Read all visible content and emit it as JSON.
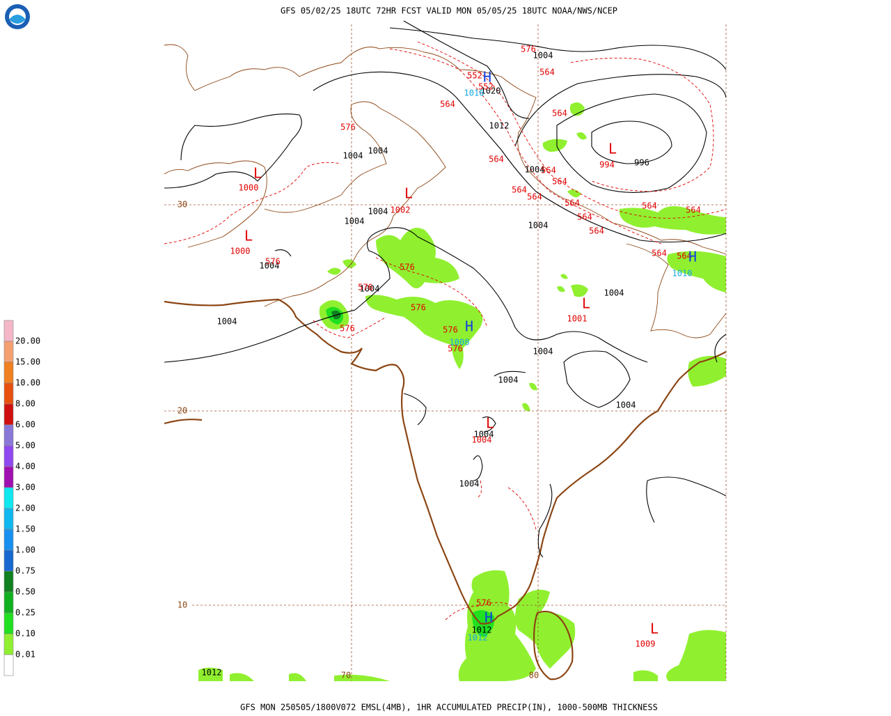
{
  "header": {
    "title": "GFS 05/02/25 18UTC 72HR FCST VALID MON 05/05/25 18UTC NOAA/NWS/NCEP"
  },
  "footer": {
    "caption": "GFS MON 250505/1800V072 EMSL(4MB), 1HR ACCUMULATED PRECIP(IN), 1000-500MB THICKNESS"
  },
  "legend": {
    "labels": [
      "20.00",
      "15.00",
      "10.00",
      "8.00",
      "6.00",
      "5.00",
      "4.00",
      "3.00",
      "2.00",
      "1.50",
      "1.00",
      "0.75",
      "0.50",
      "0.25",
      "0.10",
      "0.01"
    ],
    "colors": [
      "#f5b7c8",
      "#f5a070",
      "#f08020",
      "#e85010",
      "#d01010",
      "#8a78d8",
      "#9048f0",
      "#a010b0",
      "#10e8f0",
      "#10b8f0",
      "#1890f0",
      "#1868d0",
      "#108020",
      "#10b020",
      "#20e020",
      "#90f030",
      "#ffffff"
    ]
  },
  "map": {
    "lat_labels": [
      "30",
      "20",
      "10"
    ],
    "lon_labels": [
      "70",
      "80"
    ],
    "isobar_labels": [
      "1004",
      "1020",
      "1012",
      "996",
      "1004",
      "1004",
      "1004",
      "1004",
      "1004",
      "1004",
      "1004",
      "1004",
      "1004",
      "1004",
      "1004",
      "1004",
      "1004",
      "1004",
      "1004",
      "1012",
      "1012"
    ],
    "thickness_labels": [
      "576",
      "564",
      "552",
      "552",
      "564",
      "564",
      "576",
      "564",
      "564",
      "564",
      "564",
      "564",
      "564",
      "564",
      "564",
      "564",
      "564",
      "564",
      "564",
      "576",
      "576",
      "576",
      "576",
      "576",
      "576",
      "576",
      "576"
    ],
    "low_markers": [
      "L",
      "L",
      "L",
      "L",
      "L",
      "L",
      "L"
    ],
    "low_values": [
      "1000",
      "1000",
      "1002",
      "994",
      "1001",
      "1004",
      "1009"
    ],
    "high_markers": [
      "H",
      "H",
      "H",
      "H"
    ],
    "high_values": [
      "1016",
      "1010",
      "1008",
      "1012"
    ]
  }
}
